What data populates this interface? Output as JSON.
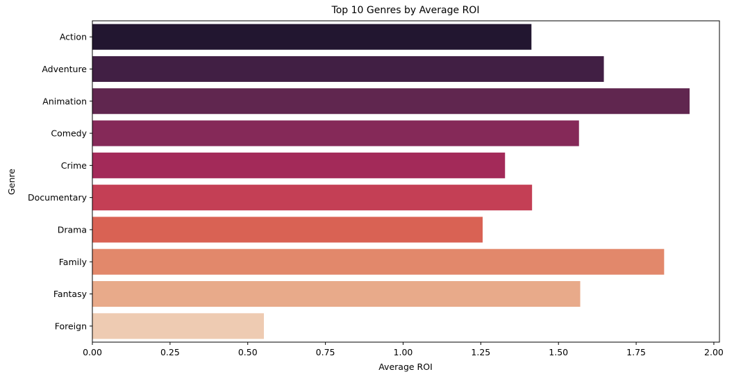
{
  "chart_data": {
    "type": "bar",
    "orientation": "horizontal",
    "title": "Top 10 Genres by Average ROI",
    "xlabel": "Average ROI",
    "ylabel": "Genre",
    "categories": [
      "Action",
      "Adventure",
      "Animation",
      "Comedy",
      "Crime",
      "Documentary",
      "Drama",
      "Family",
      "Fantasy",
      "Foreign"
    ],
    "values": [
      1.413,
      1.646,
      1.922,
      1.566,
      1.328,
      1.415,
      1.256,
      1.84,
      1.57,
      0.552
    ],
    "colors": [
      "#221630",
      "#411F44",
      "#60264F",
      "#852958",
      "#A32A59",
      "#C43F55",
      "#D96254",
      "#E2886B",
      "#E8AA8A",
      "#EECBB2"
    ],
    "xlim": [
      0,
      2.018
    ],
    "xticks": [
      0.0,
      0.25,
      0.5,
      0.75,
      1.0,
      1.25,
      1.5,
      1.75,
      2.0
    ],
    "xtick_labels": [
      "0.00",
      "0.25",
      "0.50",
      "0.75",
      "1.00",
      "1.25",
      "1.50",
      "1.75",
      "2.00"
    ],
    "grid": false,
    "legend": "none"
  }
}
